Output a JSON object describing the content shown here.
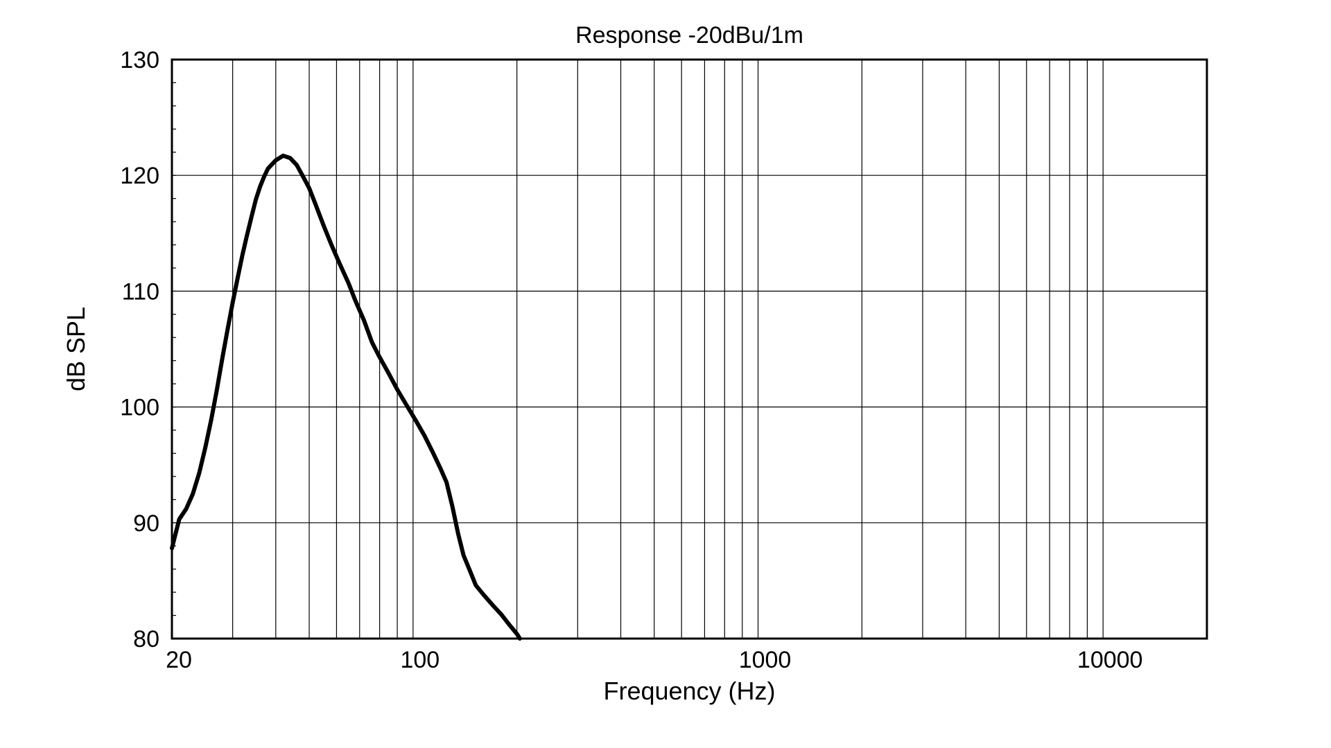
{
  "chart_data": {
    "type": "line",
    "title": "Response -20dBu/1m",
    "xlabel": "Frequency (Hz)",
    "ylabel": "dB SPL",
    "x_scale": "log",
    "xlim": [
      20,
      20000
    ],
    "ylim": [
      80,
      130
    ],
    "x_tick_labels": [
      "20",
      "100",
      "1000",
      "10000"
    ],
    "x_tick_values": [
      20,
      100,
      1000,
      10000
    ],
    "y_tick_labels": [
      "80",
      "90",
      "100",
      "110",
      "120",
      "130"
    ],
    "y_tick_values": [
      80,
      90,
      100,
      110,
      120,
      130
    ],
    "grid": true,
    "legend": "none",
    "line_color": "#000000",
    "series": [
      {
        "points": [
          [
            20,
            87.8
          ],
          [
            21,
            90.3
          ],
          [
            22,
            91.2
          ],
          [
            23,
            92.5
          ],
          [
            24,
            94.3
          ],
          [
            25,
            96.5
          ],
          [
            26,
            98.9
          ],
          [
            27,
            101.5
          ],
          [
            28,
            104.2
          ],
          [
            29,
            106.7
          ],
          [
            30,
            109.0
          ],
          [
            31,
            111.1
          ],
          [
            32,
            113.1
          ],
          [
            33,
            114.8
          ],
          [
            34,
            116.4
          ],
          [
            35,
            117.9
          ],
          [
            36,
            119.0
          ],
          [
            37,
            119.9
          ],
          [
            38,
            120.6
          ],
          [
            40,
            121.3
          ],
          [
            42,
            121.7
          ],
          [
            44,
            121.5
          ],
          [
            46,
            120.9
          ],
          [
            48,
            119.9
          ],
          [
            50,
            118.9
          ],
          [
            52,
            117.6
          ],
          [
            55,
            115.7
          ],
          [
            58,
            114.0
          ],
          [
            61,
            112.5
          ],
          [
            65,
            110.7
          ],
          [
            68,
            109.2
          ],
          [
            72,
            107.5
          ],
          [
            76,
            105.6
          ],
          [
            80,
            104.3
          ],
          [
            85,
            102.9
          ],
          [
            90,
            101.5
          ],
          [
            96,
            100.1
          ],
          [
            102,
            98.8
          ],
          [
            108,
            97.5
          ],
          [
            114,
            96.1
          ],
          [
            120,
            94.7
          ],
          [
            125,
            93.5
          ],
          [
            130,
            91.4
          ],
          [
            135,
            89.1
          ],
          [
            140,
            87.2
          ],
          [
            146,
            85.9
          ],
          [
            152,
            84.6
          ],
          [
            160,
            83.8
          ],
          [
            170,
            82.9
          ],
          [
            180,
            82.1
          ],
          [
            190,
            81.2
          ],
          [
            200,
            80.4
          ],
          [
            204,
            80.0
          ]
        ]
      }
    ]
  }
}
